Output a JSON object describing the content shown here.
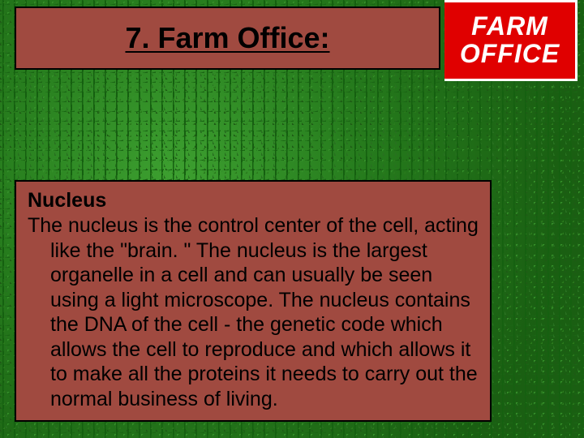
{
  "title": {
    "text": "7. Farm Office:"
  },
  "logo": {
    "line1": "FARM",
    "line2": "OFFICE"
  },
  "body": {
    "heading": "Nucleus",
    "paragraph": "The nucleus is the control center of the cell, acting like the \"brain. \" The nucleus is the largest organelle in a cell and can usually be seen using a light microscope. The nucleus contains the DNA of the cell - the genetic code which allows the cell to reproduce and which allows it to make all the proteins it needs to carry out the normal business of living."
  },
  "colors": {
    "box_fill": "#a04a40",
    "box_border": "#000000",
    "logo_bg": "#e00000",
    "logo_text": "#ffffff",
    "text": "#000000"
  },
  "type": "infographic-slide"
}
